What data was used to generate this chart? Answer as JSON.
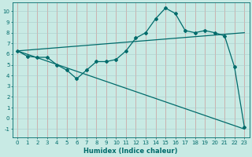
{
  "xlabel": "Humidex (Indice chaleur)",
  "ylabel": "",
  "bg_color": "#c8eae4",
  "line_color": "#006b6b",
  "grid_color": "#b0b0b0",
  "xlim": [
    -0.5,
    23.5
  ],
  "ylim": [
    -1.8,
    10.8
  ],
  "xticks": [
    0,
    1,
    2,
    3,
    4,
    5,
    6,
    7,
    8,
    9,
    10,
    11,
    12,
    13,
    14,
    15,
    16,
    17,
    18,
    19,
    20,
    21,
    22,
    23
  ],
  "yticks": [
    -1,
    0,
    1,
    2,
    3,
    4,
    5,
    6,
    7,
    8,
    9,
    10
  ],
  "line1_x": [
    0,
    1,
    2,
    3,
    4,
    5,
    6,
    7,
    8,
    9,
    10,
    11,
    12,
    13,
    14,
    15,
    16,
    17,
    18,
    19,
    20,
    21,
    22,
    23
  ],
  "line1_y": [
    6.3,
    5.8,
    5.7,
    5.7,
    5.0,
    4.5,
    3.7,
    4.5,
    5.3,
    5.3,
    5.5,
    6.3,
    7.5,
    8.0,
    9.3,
    10.3,
    9.8,
    8.2,
    8.0,
    8.2,
    8.0,
    7.7,
    4.8,
    -0.8
  ],
  "line2_x": [
    0,
    23
  ],
  "line2_y": [
    6.3,
    -1.0
  ],
  "line3_x": [
    0,
    23
  ],
  "line3_y": [
    6.3,
    8.0
  ]
}
